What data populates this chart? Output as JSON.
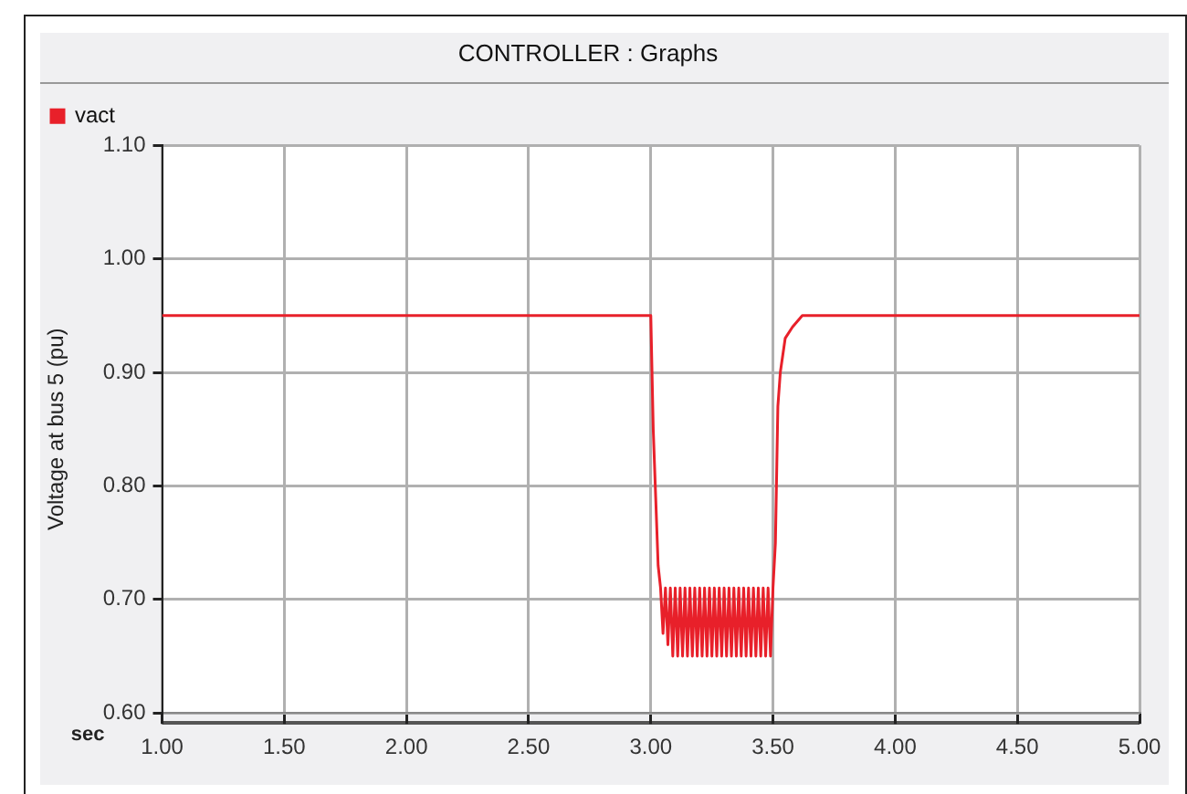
{
  "chart_data": {
    "type": "line",
    "title": "CONTROLLER : Graphs",
    "xlabel": "sec",
    "ylabel": "Voltage at bus 5 (pu)",
    "xlim": [
      1.0,
      5.0
    ],
    "xticks": [
      {
        "value": 1.0,
        "label": "1.00"
      },
      {
        "value": 1.5,
        "label": "1.50"
      },
      {
        "value": 2.0,
        "label": "2.00"
      },
      {
        "value": 2.5,
        "label": "2.50"
      },
      {
        "value": 3.0,
        "label": "3.00"
      },
      {
        "value": 3.5,
        "label": "3.50"
      },
      {
        "value": 4.0,
        "label": "4.00"
      },
      {
        "value": 4.5,
        "label": "4.50"
      },
      {
        "value": 5.0,
        "label": "5.00"
      }
    ],
    "ylim": [
      0.6,
      1.1
    ],
    "yticks": [
      {
        "value": 0.6,
        "label": "0.60"
      },
      {
        "value": 0.7,
        "label": "0.70"
      },
      {
        "value": 0.8,
        "label": "0.80"
      },
      {
        "value": 0.9,
        "label": "0.90"
      },
      {
        "value": 1.0,
        "label": "1.00"
      },
      {
        "value": 1.1,
        "label": "1.10"
      }
    ],
    "grid": true,
    "legend": "top left",
    "marker": "none",
    "line_style": "solid",
    "series": [
      {
        "name": "vact",
        "color": "#e8202a",
        "x": [
          1.0,
          3.0,
          3.01,
          3.02,
          3.03,
          3.04,
          3.05,
          3.06,
          3.07,
          3.08,
          3.09,
          3.1,
          3.11,
          3.12,
          3.13,
          3.14,
          3.15,
          3.16,
          3.17,
          3.18,
          3.19,
          3.2,
          3.21,
          3.22,
          3.23,
          3.24,
          3.25,
          3.26,
          3.27,
          3.28,
          3.29,
          3.3,
          3.31,
          3.32,
          3.33,
          3.34,
          3.35,
          3.36,
          3.37,
          3.38,
          3.39,
          3.4,
          3.41,
          3.42,
          3.43,
          3.44,
          3.45,
          3.46,
          3.47,
          3.48,
          3.49,
          3.5,
          3.51,
          3.52,
          3.53,
          3.55,
          3.58,
          3.62,
          3.7,
          5.0
        ],
        "values": [
          0.95,
          0.95,
          0.85,
          0.79,
          0.73,
          0.71,
          0.67,
          0.71,
          0.66,
          0.71,
          0.65,
          0.71,
          0.65,
          0.71,
          0.65,
          0.71,
          0.65,
          0.71,
          0.65,
          0.71,
          0.65,
          0.71,
          0.65,
          0.71,
          0.65,
          0.71,
          0.65,
          0.71,
          0.65,
          0.71,
          0.65,
          0.71,
          0.65,
          0.71,
          0.65,
          0.71,
          0.65,
          0.71,
          0.65,
          0.71,
          0.65,
          0.71,
          0.65,
          0.71,
          0.65,
          0.71,
          0.65,
          0.71,
          0.65,
          0.71,
          0.65,
          0.71,
          0.75,
          0.87,
          0.9,
          0.93,
          0.94,
          0.95,
          0.95,
          0.95
        ]
      }
    ]
  }
}
